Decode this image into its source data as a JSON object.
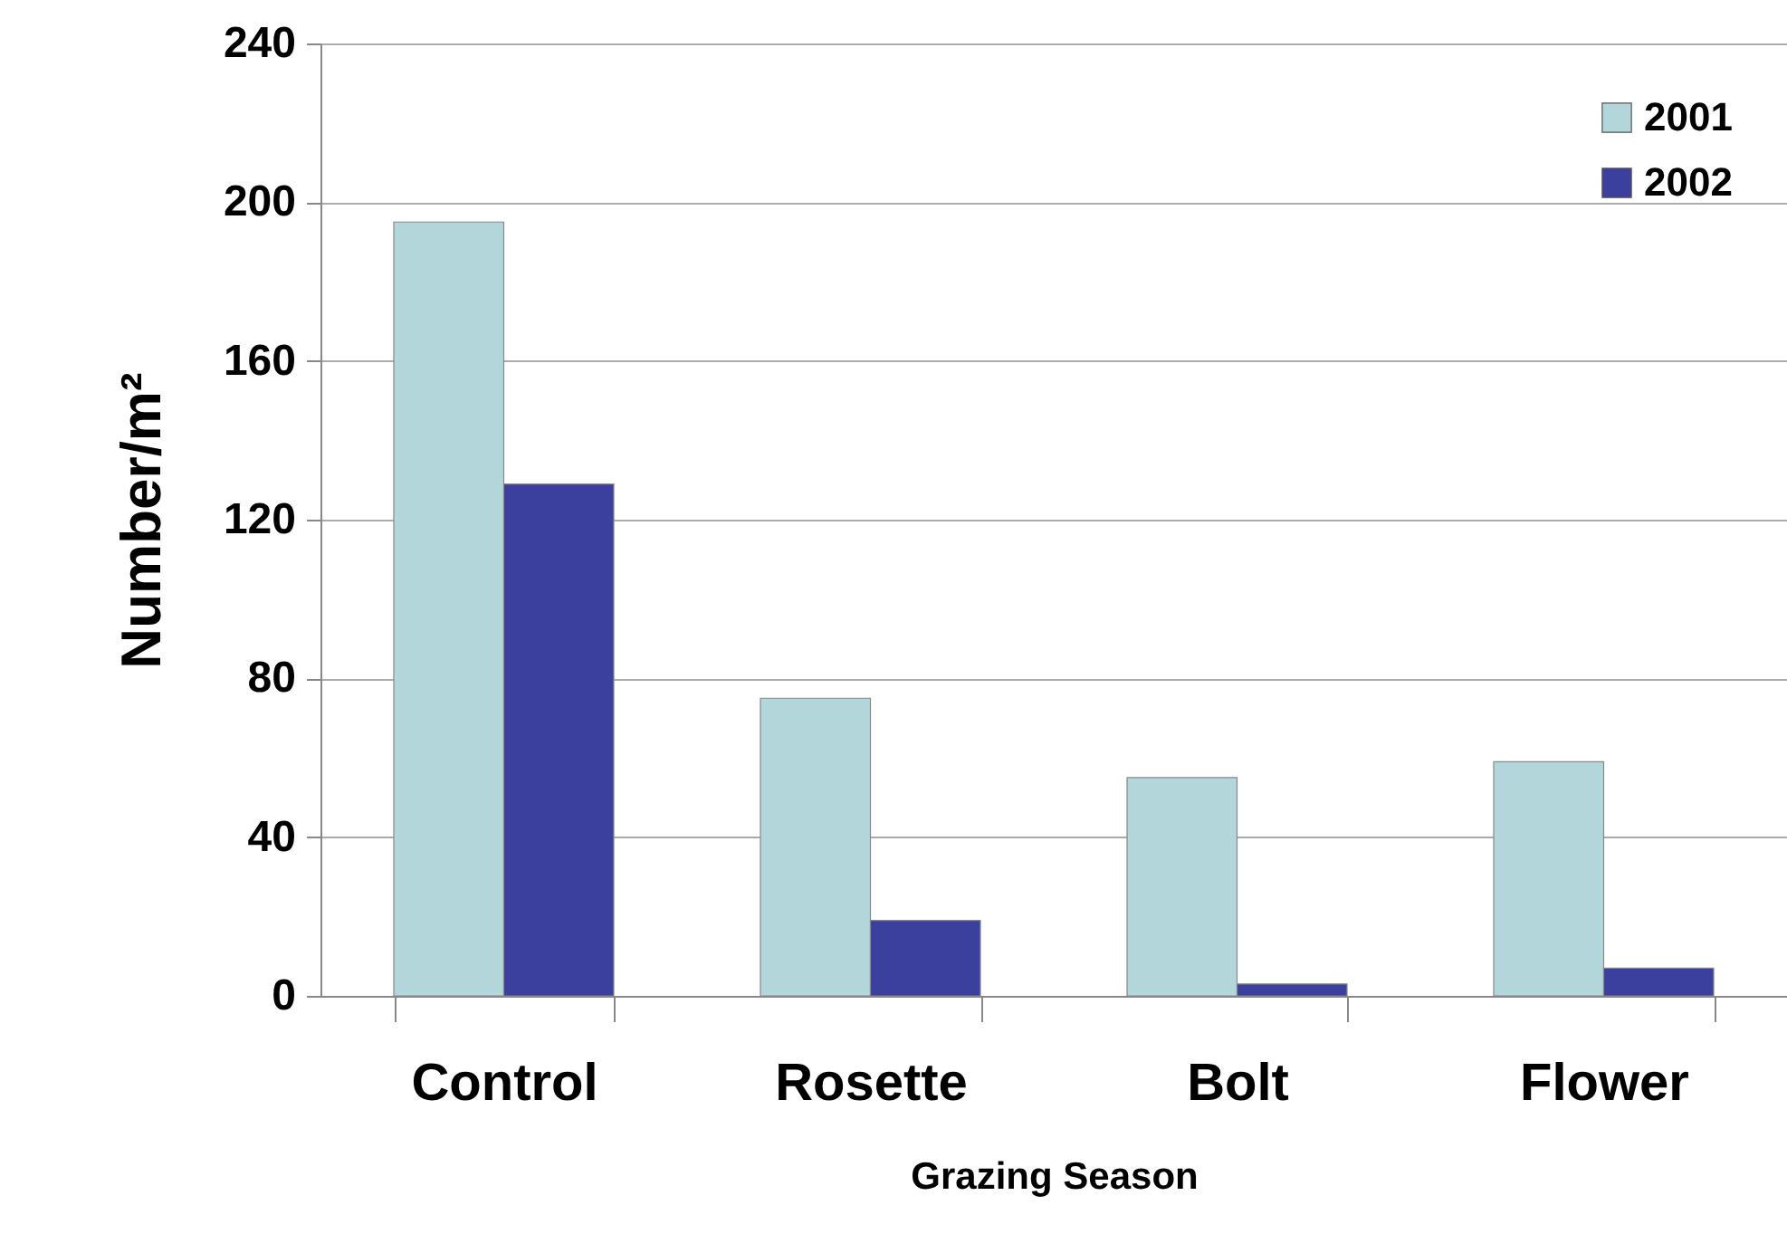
{
  "chart_data": {
    "type": "bar",
    "xlabel": "Grazing Season",
    "ylabel": "Number/m²",
    "categories": [
      "Control",
      "Rosette",
      "Bolt",
      "Flower"
    ],
    "series": [
      {
        "name": "2001",
        "color": "#b3d6da",
        "values": [
          195,
          75,
          55,
          59
        ]
      },
      {
        "name": "2002",
        "color": "#3b3f9e",
        "values": [
          129,
          19,
          3,
          7
        ]
      }
    ],
    "ylim": [
      0,
      240
    ],
    "yticks": [
      0,
      40,
      80,
      120,
      160,
      200,
      240
    ],
    "grid": "y",
    "legend": "top right"
  }
}
